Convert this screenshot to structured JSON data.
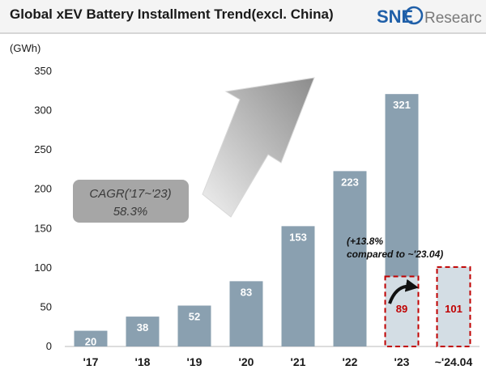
{
  "title": "Global xEV Battery Installment Trend(excl. China)",
  "logo": {
    "mark": "SNE",
    "word": "Research"
  },
  "colors": {
    "bar": "#8aa0b0",
    "forecast_fill": "#d3dde4",
    "forecast_border": "#c00000",
    "forecast_label": "#c00000",
    "bar_label": "#ffffff",
    "logo_blue": "#1f5fa8",
    "logo_gray": "#7a7a7a"
  },
  "annotations": {
    "cagr_line1": "CAGR('17~'23)",
    "cagr_line2": "58.3%",
    "growth_line1": "(+13.8%",
    "growth_line2": "compared to ~'23.04)"
  },
  "chart_data": {
    "type": "bar",
    "title": "Global xEV Battery Installment Trend(excl. China)",
    "ylabel": "(GWh)",
    "ylim": [
      0,
      350
    ],
    "yticks": [
      0,
      50,
      100,
      150,
      200,
      250,
      300,
      350
    ],
    "grid": false,
    "categories": [
      "'17",
      "'18",
      "'19",
      "'20",
      "'21",
      "'22",
      "'23",
      "~'24.04"
    ],
    "series": [
      {
        "values": [
          20,
          38,
          52,
          83,
          153,
          223,
          321,
          null
        ]
      }
    ],
    "highlight": [
      {
        "category": "'23",
        "value": 89
      },
      {
        "category": "~'24.04",
        "value": 101
      }
    ]
  }
}
